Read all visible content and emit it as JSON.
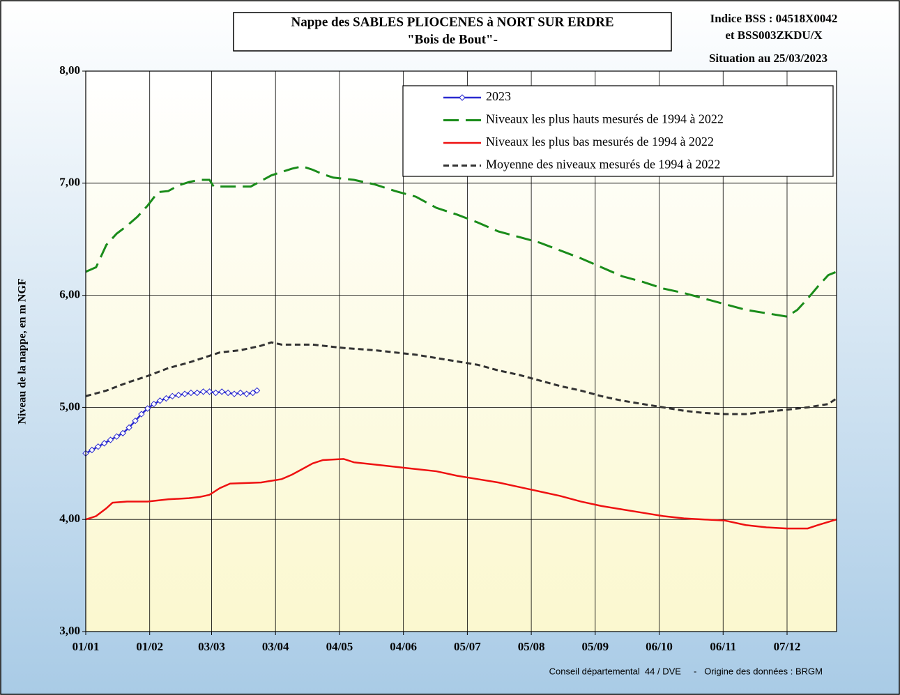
{
  "chart_data": {
    "type": "line",
    "title": "Nappe des SABLES PLIOCENES à NORT SUR ERDRE",
    "subtitle": "\"Bois de Bout\"-",
    "annotations": [
      "Indice BSS : 04518X0042",
      "et BSS003ZKDU/X",
      "Situation au 25/03/2023"
    ],
    "footer": "Conseil départemental  44 / DVE     -   Origine des données : BRGM",
    "y_label": "Niveau de la nappe, en m NGF",
    "xlim": [
      0,
      364
    ],
    "xticks": [
      {
        "value": 0,
        "label": "01/01"
      },
      {
        "value": 31,
        "label": "01/02"
      },
      {
        "value": 61,
        "label": "03/03"
      },
      {
        "value": 92,
        "label": "03/04"
      },
      {
        "value": 123,
        "label": "04/05"
      },
      {
        "value": 154,
        "label": "04/06"
      },
      {
        "value": 185,
        "label": "05/07"
      },
      {
        "value": 216,
        "label": "05/08"
      },
      {
        "value": 247,
        "label": "05/09"
      },
      {
        "value": 278,
        "label": "06/10"
      },
      {
        "value": 309,
        "label": "06/11"
      },
      {
        "value": 340,
        "label": "07/12"
      }
    ],
    "ylim": [
      3,
      8
    ],
    "yticks": [
      {
        "value": 3,
        "label": "3,00"
      },
      {
        "value": 4,
        "label": "4,00"
      },
      {
        "value": 5,
        "label": "5,00"
      },
      {
        "value": 6,
        "label": "6,00"
      },
      {
        "value": 7,
        "label": "7,00"
      },
      {
        "value": 8,
        "label": "8,00"
      }
    ],
    "grid": true,
    "legend": "upper right",
    "series": [
      {
        "name": "2023",
        "color": "#2a2ad0",
        "line_style": "solid",
        "marker": "diamond",
        "x": [
          0,
          3,
          6,
          9,
          12,
          15,
          18,
          21,
          24,
          27,
          30,
          33,
          36,
          39,
          42,
          45,
          48,
          51,
          54,
          57,
          60,
          63,
          66,
          69,
          72,
          75,
          78,
          81,
          83
        ],
        "values": [
          4.59,
          4.62,
          4.65,
          4.68,
          4.71,
          4.74,
          4.77,
          4.82,
          4.88,
          4.94,
          4.99,
          5.03,
          5.06,
          5.08,
          5.1,
          5.11,
          5.12,
          5.13,
          5.13,
          5.14,
          5.14,
          5.13,
          5.14,
          5.13,
          5.12,
          5.13,
          5.12,
          5.13,
          5.15
        ]
      },
      {
        "name": "Niveaux les plus hauts mesurés de 1994 à 2022",
        "color": "#1a8c1a",
        "line_style": "dashed",
        "x": [
          0,
          5,
          10,
          15,
          20,
          25,
          30,
          35,
          40,
          45,
          50,
          55,
          60,
          62,
          70,
          80,
          85,
          90,
          100,
          105,
          110,
          115,
          120,
          130,
          140,
          150,
          160,
          170,
          180,
          190,
          200,
          210,
          220,
          230,
          240,
          250,
          260,
          270,
          280,
          290,
          300,
          310,
          320,
          330,
          340,
          345,
          350,
          355,
          360,
          364
        ],
        "values": [
          6.21,
          6.25,
          6.45,
          6.55,
          6.62,
          6.7,
          6.8,
          6.92,
          6.93,
          6.98,
          7.01,
          7.03,
          7.03,
          6.97,
          6.97,
          6.97,
          7.02,
          7.07,
          7.13,
          7.15,
          7.12,
          7.08,
          7.05,
          7.03,
          6.99,
          6.93,
          6.88,
          6.78,
          6.72,
          6.65,
          6.57,
          6.52,
          6.47,
          6.4,
          6.33,
          6.25,
          6.17,
          6.12,
          6.06,
          6.02,
          5.97,
          5.92,
          5.87,
          5.84,
          5.81,
          5.87,
          5.97,
          6.08,
          6.18,
          6.21
        ]
      },
      {
        "name": "Niveaux les plus bas mesurés de 1994 à 2022",
        "color": "#ee1111",
        "line_style": "solid",
        "x": [
          0,
          5,
          10,
          13,
          20,
          30,
          35,
          40,
          50,
          55,
          60,
          65,
          70,
          85,
          95,
          100,
          105,
          110,
          115,
          125,
          130,
          140,
          150,
          160,
          170,
          180,
          190,
          200,
          210,
          220,
          230,
          240,
          250,
          260,
          270,
          280,
          290,
          300,
          310,
          320,
          330,
          340,
          350,
          355,
          364
        ],
        "values": [
          4.0,
          4.03,
          4.1,
          4.15,
          4.16,
          4.16,
          4.17,
          4.18,
          4.19,
          4.2,
          4.22,
          4.28,
          4.32,
          4.33,
          4.36,
          4.4,
          4.45,
          4.5,
          4.53,
          4.54,
          4.51,
          4.49,
          4.47,
          4.45,
          4.43,
          4.39,
          4.36,
          4.33,
          4.29,
          4.25,
          4.21,
          4.16,
          4.12,
          4.09,
          4.06,
          4.03,
          4.01,
          4.0,
          3.99,
          3.95,
          3.93,
          3.92,
          3.92,
          3.95,
          4.0
        ]
      },
      {
        "name": "Moyenne des niveaux mesurés de 1994 à 2022",
        "color": "#333333",
        "line_style": "dotted",
        "x": [
          0,
          10,
          20,
          30,
          40,
          50,
          60,
          65,
          75,
          85,
          90,
          95,
          110,
          125,
          140,
          160,
          180,
          190,
          200,
          210,
          220,
          230,
          240,
          250,
          260,
          270,
          280,
          290,
          300,
          310,
          320,
          330,
          340,
          350,
          360,
          364
        ],
        "values": [
          5.1,
          5.15,
          5.22,
          5.28,
          5.35,
          5.4,
          5.46,
          5.49,
          5.51,
          5.55,
          5.58,
          5.56,
          5.56,
          5.53,
          5.51,
          5.47,
          5.41,
          5.38,
          5.33,
          5.29,
          5.24,
          5.19,
          5.15,
          5.1,
          5.06,
          5.03,
          5.0,
          4.97,
          4.95,
          4.94,
          4.94,
          4.96,
          4.98,
          5.0,
          5.03,
          5.08
        ]
      }
    ]
  }
}
